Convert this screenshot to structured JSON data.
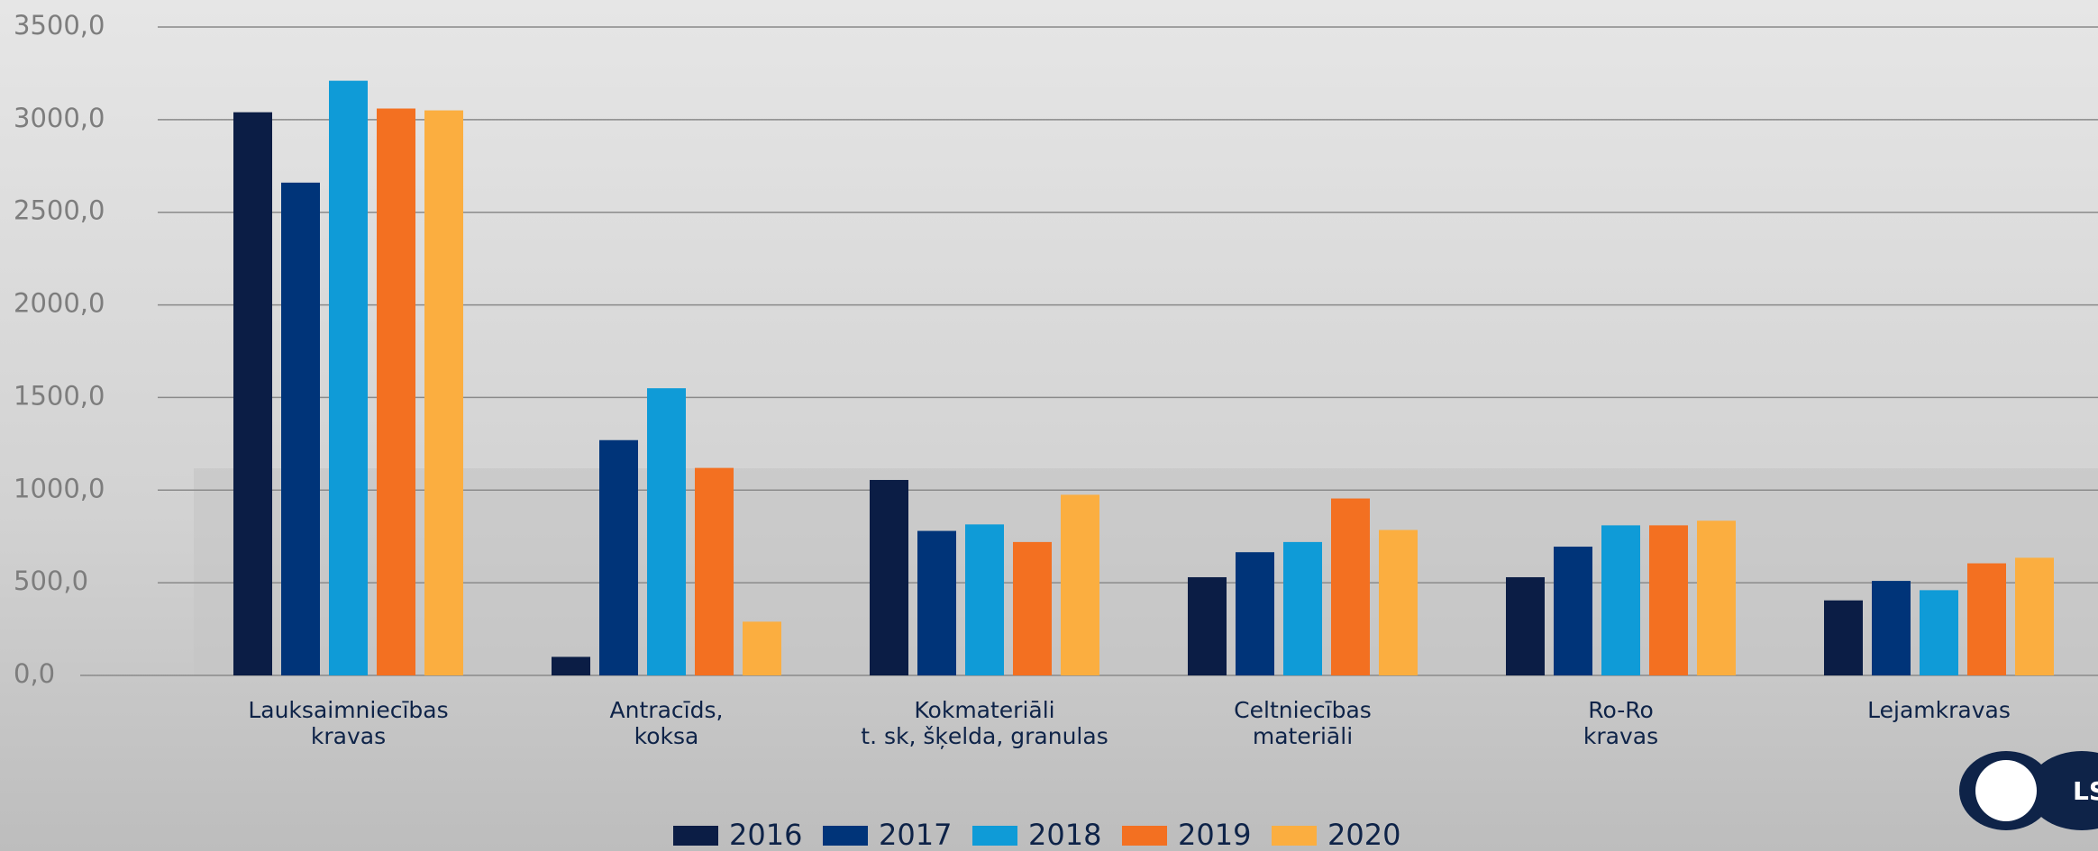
{
  "chart_data": {
    "type": "bar",
    "categories": [
      [
        "Lauksaimniecības",
        "kravas"
      ],
      [
        "Antracīds,",
        "koksa"
      ],
      [
        "Kokmateriāli",
        "t. sk, šķelda, granulas"
      ],
      [
        "Celtniecības",
        "materiāli"
      ],
      [
        "Ro-Ro",
        "kravas"
      ],
      [
        "Lejamkravas"
      ]
    ],
    "series": [
      {
        "name": "2016",
        "color": "#0b1d45",
        "values": [
          3040,
          100,
          1055,
          530,
          530,
          405
        ]
      },
      {
        "name": "2017",
        "color": "#003479",
        "values": [
          2660,
          1270,
          780,
          665,
          695,
          510
        ]
      },
      {
        "name": "2018",
        "color": "#0f9bd7",
        "values": [
          3210,
          1550,
          815,
          720,
          810,
          460
        ]
      },
      {
        "name": "2019",
        "color": "#f37021",
        "values": [
          3060,
          1120,
          720,
          955,
          810,
          605
        ]
      },
      {
        "name": "2020",
        "color": "#fbae40",
        "values": [
          3050,
          290,
          975,
          785,
          835,
          635
        ]
      }
    ],
    "ylim": [
      0,
      3500
    ],
    "yticks": [
      {
        "value": 0,
        "label": "0,0"
      },
      {
        "value": 500,
        "label": "500,0"
      },
      {
        "value": 1000,
        "label": "1000,0"
      },
      {
        "value": 1500,
        "label": "1500,0"
      },
      {
        "value": 2000,
        "label": "2000,0"
      },
      {
        "value": 2500,
        "label": "2500,0"
      },
      {
        "value": 3000,
        "label": "3000,0"
      },
      {
        "value": 3500,
        "label": "3500,0"
      }
    ],
    "grid": true,
    "legend": "bottom",
    "logo_text": "LSE"
  }
}
